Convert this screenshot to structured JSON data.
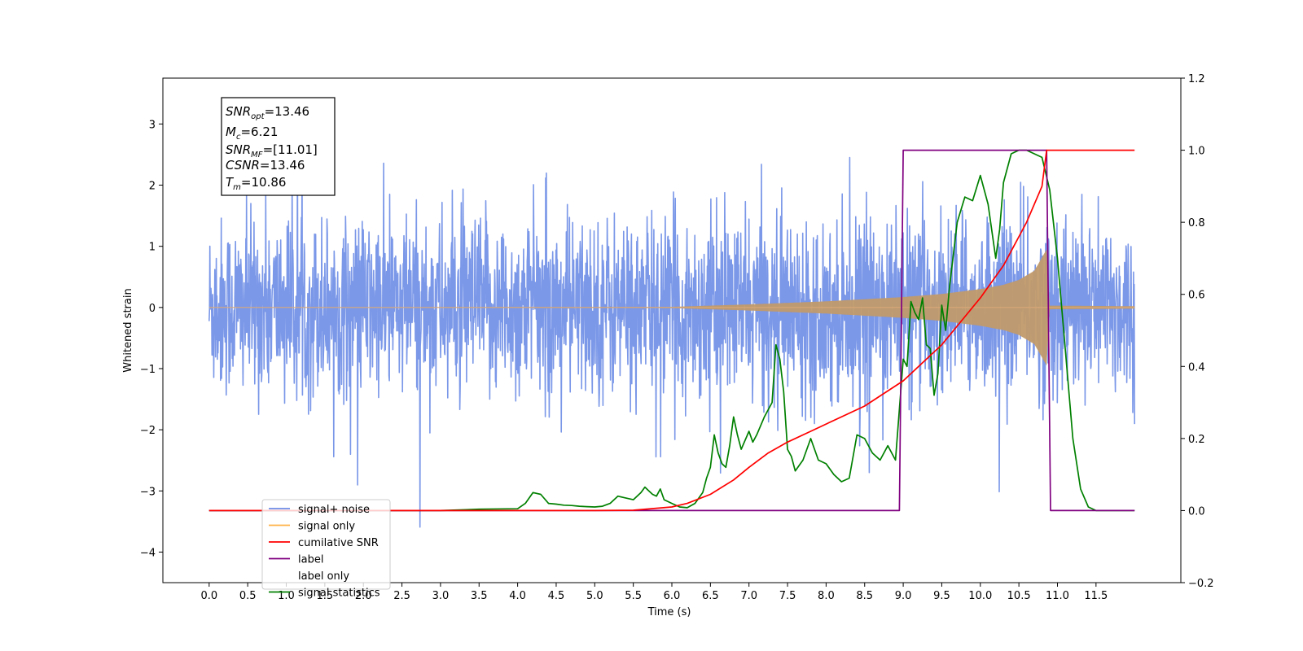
{
  "chart_data": {
    "type": "line",
    "xlabel": "Time (s)",
    "ylabel": "Whitened strain",
    "xlim": [
      -0.6,
      12.6
    ],
    "ylim": [
      -4.5,
      3.75
    ],
    "y2lim": [
      -0.2,
      1.2
    ],
    "x_ticks": [
      "0.0",
      "0.5",
      "1.0",
      "1.5",
      "2.0",
      "2.5",
      "3.0",
      "3.5",
      "4.0",
      "4.5",
      "5.0",
      "5.5",
      "6.0",
      "6.5",
      "7.0",
      "7.5",
      "8.0",
      "8.5",
      "9.0",
      "9.5",
      "10.0",
      "10.5",
      "11.0",
      "11.5"
    ],
    "y_ticks": [
      "3",
      "2",
      "1",
      "0",
      "−1",
      "−2",
      "−3",
      "−4"
    ],
    "y2_ticks": [
      "1.2",
      "1.0",
      "0.8",
      "0.6",
      "0.4",
      "0.2",
      "0.0",
      "−0.2"
    ],
    "legend_placement": "lower-left",
    "grid": false,
    "stats_box": {
      "snr_opt": "=13.46",
      "mc": "=6.21",
      "snr_mf": "=[11.01]",
      "csnr": "=13.46",
      "tm": "=10.86"
    },
    "series": [
      {
        "name": "signal+ noise",
        "axis": "left",
        "color": "#6b8ce6",
        "description_band": "random noise, roughly ±1.2 typical, spikes to about ±3.4",
        "x_range": [
          0.0,
          12.0
        ]
      },
      {
        "name": "signal only",
        "axis": "left",
        "color": "#ffb347",
        "envelope": {
          "x": [
            0.0,
            6.0,
            7.0,
            8.0,
            9.0,
            9.5,
            10.0,
            10.3,
            10.5,
            10.7,
            10.86,
            10.9,
            12.0
          ],
          "amplitude": [
            0.0,
            0.01,
            0.05,
            0.1,
            0.17,
            0.22,
            0.3,
            0.37,
            0.45,
            0.6,
            0.95,
            0.03,
            0.02
          ]
        }
      },
      {
        "name": "cumilative SNR",
        "axis": "right",
        "color": "#ff0000",
        "x": [
          0.0,
          5.0,
          5.5,
          6.0,
          6.2,
          6.5,
          6.8,
          7.0,
          7.25,
          7.5,
          7.8,
          8.0,
          8.5,
          9.0,
          9.5,
          10.0,
          10.3,
          10.6,
          10.8,
          10.86,
          10.9,
          12.0
        ],
        "y": [
          0.0,
          0.0,
          0.001,
          0.01,
          0.02,
          0.045,
          0.085,
          0.12,
          0.16,
          0.19,
          0.22,
          0.24,
          0.29,
          0.36,
          0.46,
          0.59,
          0.68,
          0.8,
          0.9,
          1.0,
          1.0,
          1.0
        ]
      },
      {
        "name": "label",
        "axis": "right",
        "color": "#800080",
        "x": [
          0.0,
          8.95,
          9.0,
          10.86,
          10.91,
          12.0
        ],
        "y": [
          0.0,
          0.0,
          1.0,
          1.0,
          0.0,
          0.0
        ]
      },
      {
        "name": "label only",
        "axis": "right",
        "color": "#ffffff",
        "x": [],
        "y": []
      },
      {
        "name": "signal statistics",
        "axis": "right",
        "color": "#008000",
        "x": [
          0.0,
          2.0,
          3.0,
          3.3,
          3.5,
          4.0,
          4.1,
          4.2,
          4.3,
          4.4,
          4.5,
          4.6,
          4.7,
          4.8,
          4.9,
          5.0,
          5.1,
          5.2,
          5.3,
          5.4,
          5.5,
          5.6,
          5.65,
          5.7,
          5.75,
          5.8,
          5.85,
          5.9,
          6.0,
          6.1,
          6.2,
          6.3,
          6.4,
          6.45,
          6.5,
          6.55,
          6.6,
          6.65,
          6.7,
          6.75,
          6.8,
          6.85,
          6.9,
          7.0,
          7.05,
          7.1,
          7.2,
          7.3,
          7.35,
          7.4,
          7.45,
          7.5,
          7.55,
          7.6,
          7.7,
          7.8,
          7.9,
          8.0,
          8.1,
          8.2,
          8.3,
          8.4,
          8.5,
          8.6,
          8.7,
          8.8,
          8.9,
          9.0,
          9.05,
          9.1,
          9.15,
          9.2,
          9.25,
          9.3,
          9.35,
          9.4,
          9.45,
          9.5,
          9.55,
          9.6,
          9.7,
          9.8,
          9.9,
          10.0,
          10.1,
          10.2,
          10.25,
          10.3,
          10.4,
          10.5,
          10.6,
          10.7,
          10.8,
          10.9,
          11.0,
          11.1,
          11.2,
          11.3,
          11.4,
          11.5,
          12.0
        ],
        "y": [
          0.0,
          0.0,
          0.0,
          0.002,
          0.004,
          0.005,
          0.02,
          0.05,
          0.045,
          0.02,
          0.018,
          0.015,
          0.014,
          0.012,
          0.011,
          0.01,
          0.012,
          0.02,
          0.04,
          0.035,
          0.03,
          0.05,
          0.065,
          0.055,
          0.045,
          0.04,
          0.06,
          0.03,
          0.02,
          0.01,
          0.008,
          0.02,
          0.05,
          0.09,
          0.12,
          0.21,
          0.16,
          0.13,
          0.12,
          0.18,
          0.26,
          0.21,
          0.17,
          0.22,
          0.19,
          0.21,
          0.26,
          0.3,
          0.46,
          0.42,
          0.33,
          0.17,
          0.15,
          0.11,
          0.14,
          0.2,
          0.14,
          0.13,
          0.1,
          0.08,
          0.09,
          0.21,
          0.2,
          0.16,
          0.14,
          0.18,
          0.14,
          0.42,
          0.4,
          0.58,
          0.55,
          0.53,
          0.59,
          0.46,
          0.45,
          0.32,
          0.38,
          0.57,
          0.5,
          0.62,
          0.8,
          0.87,
          0.86,
          0.93,
          0.85,
          0.7,
          0.78,
          0.91,
          0.99,
          1.0,
          1.0,
          0.99,
          0.98,
          0.89,
          0.7,
          0.45,
          0.2,
          0.06,
          0.01,
          0.0,
          0.0
        ]
      }
    ]
  }
}
